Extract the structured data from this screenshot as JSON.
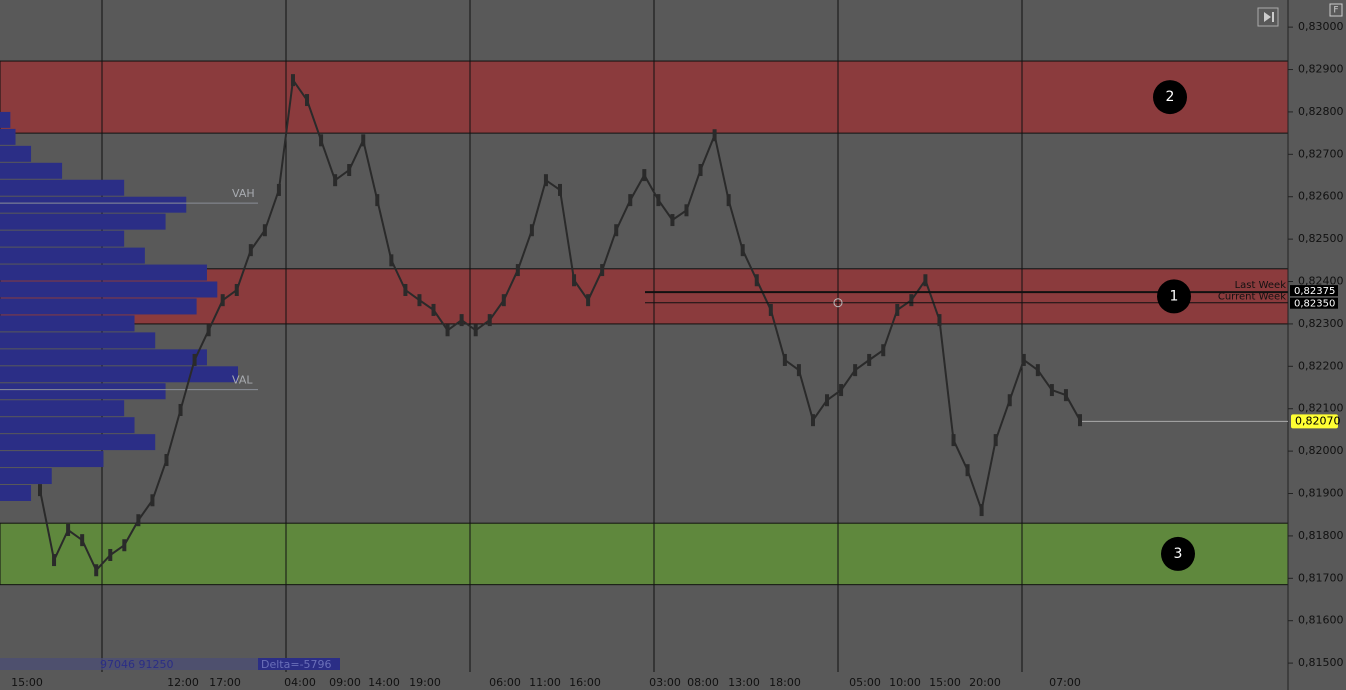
{
  "chart_data": {
    "type": "price",
    "ylim": [
      0.81479,
      0.83064
    ],
    "yticks": [
      {
        "value": 0.83,
        "label": "0,83000"
      },
      {
        "value": 0.829,
        "label": "0,82900"
      },
      {
        "value": 0.828,
        "label": "0,82800"
      },
      {
        "value": 0.827,
        "label": "0,82700"
      },
      {
        "value": 0.826,
        "label": "0,82600"
      },
      {
        "value": 0.825,
        "label": "0,82500"
      },
      {
        "value": 0.824,
        "label": "0,82400"
      },
      {
        "value": 0.823,
        "label": "0,82300"
      },
      {
        "value": 0.822,
        "label": "0,82200"
      },
      {
        "value": 0.821,
        "label": "0,82100"
      },
      {
        "value": 0.82,
        "label": "0,82000"
      },
      {
        "value": 0.819,
        "label": "0,81900"
      },
      {
        "value": 0.818,
        "label": "0,81800"
      },
      {
        "value": 0.817,
        "label": "0,81700"
      },
      {
        "value": 0.816,
        "label": "0,81600"
      },
      {
        "value": 0.815,
        "label": "0,81500"
      }
    ],
    "time_labels": [
      "15:00",
      "12:00",
      "17:00",
      "04:00",
      "09:00",
      "14:00",
      "19:00",
      "06:00",
      "11:00",
      "16:00",
      "03:00",
      "08:00",
      "13:00",
      "18:00",
      "05:00",
      "10:00",
      "15:00",
      "20:00",
      "07:00"
    ],
    "values": [
      0.81908,
      0.81743,
      0.81814,
      0.8179,
      0.81719,
      0.81755,
      0.81778,
      0.81837,
      0.81884,
      0.81979,
      0.82097,
      0.82215,
      0.82285,
      0.82356,
      0.8238,
      0.82474,
      0.82521,
      0.82616,
      0.82875,
      0.82828,
      0.82733,
      0.82639,
      0.82663,
      0.82733,
      0.82592,
      0.8245,
      0.8238,
      0.82356,
      0.82333,
      0.82285,
      0.82309,
      0.82285,
      0.82309,
      0.82356,
      0.82427,
      0.82521,
      0.82639,
      0.82616,
      0.82403,
      0.82356,
      0.82427,
      0.82521,
      0.82592,
      0.82651,
      0.82592,
      0.82545,
      0.82568,
      0.82663,
      0.82745,
      0.82592,
      0.82474,
      0.82403,
      0.82333,
      0.82215,
      0.82191,
      0.82073,
      0.8212,
      0.82144,
      0.82191,
      0.82215,
      0.82238,
      0.82333,
      0.82356,
      0.82403,
      0.82309,
      0.82026,
      0.81955,
      0.81861,
      0.82026,
      0.8212,
      0.82215,
      0.82191,
      0.82144,
      0.82132,
      0.82073
    ],
    "color": "#2a2a2a",
    "zones": [
      {
        "label": "2",
        "from": 0.8275,
        "to": 0.8292,
        "color": "#8b3b3d"
      },
      {
        "label": "1",
        "from": 0.823,
        "to": 0.8243,
        "color": "#8b3b3d"
      },
      {
        "label": "3",
        "from": 0.81685,
        "to": 0.8183,
        "color": "#5f883d"
      }
    ],
    "volume_profile": {
      "prices": [
        0.8278,
        0.8274,
        0.827,
        0.8266,
        0.8262,
        0.8258,
        0.8254,
        0.825,
        0.8246,
        0.8242,
        0.8238,
        0.8234,
        0.823,
        0.8226,
        0.8222,
        0.8218,
        0.8214,
        0.821,
        0.8206,
        0.8202,
        0.8198,
        0.8194,
        0.819
      ],
      "volumes": [
        10,
        15,
        30,
        60,
        120,
        180,
        160,
        120,
        140,
        200,
        210,
        190,
        130,
        150,
        200,
        230,
        160,
        120,
        130,
        150,
        100,
        50,
        30
      ],
      "color": "#2b2e86",
      "vah": {
        "label": "VAH",
        "value": 0.82585
      },
      "val": {
        "label": "VAL",
        "value": 0.82145
      }
    },
    "levels": [
      {
        "label": "Last Week",
        "value": 0.82375,
        "price_label": "0,82375"
      },
      {
        "label": "Current Week",
        "value": 0.8235,
        "price_label": "0,82350"
      }
    ],
    "last_price": {
      "value": 0.8207,
      "label": "0,82070"
    },
    "footer": {
      "volumes": "97046 91250",
      "delta": "Delta=-5796"
    }
  }
}
